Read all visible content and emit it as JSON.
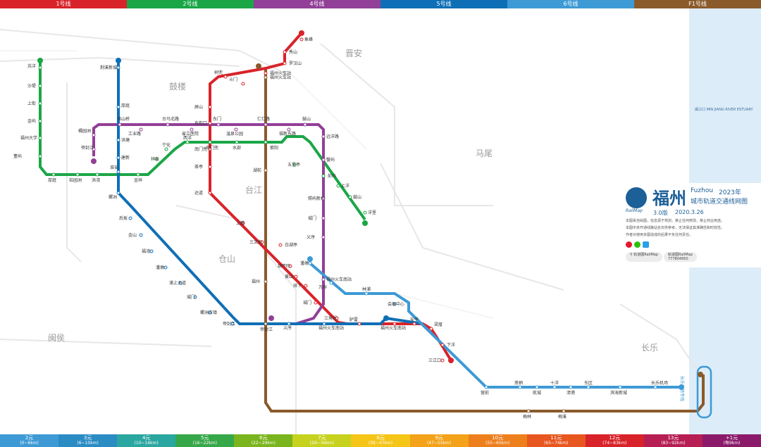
{
  "legend": [
    {
      "label": "1号线",
      "color": "#d9232a"
    },
    {
      "label": "2号线",
      "color": "#1aa646"
    },
    {
      "label": "4号线",
      "color": "#923f97"
    },
    {
      "label": "5号线",
      "color": "#0f6fb6"
    },
    {
      "label": "6号线",
      "color": "#3d9ad5"
    },
    {
      "label": "F1号线",
      "color": "#8a5a2b"
    }
  ],
  "districts": [
    "晋安",
    "鼓楼",
    "马尾",
    "台江",
    "仓山",
    "闽侯",
    "长乐"
  ],
  "info": {
    "city": "福州",
    "en": "Fuzhou",
    "year": "2023年",
    "subtitle": "城市轨道交通线网图",
    "version": "3.0版",
    "date": "2020.3.26",
    "brand": "RailMap",
    "note1": "本图系自绘图，信息源于规划，禁止任何修改，禁止商业用途。",
    "note2": "本图中未开通线路站名仅供参考，无法保证其准确性和时效性。",
    "note3": "作者对使用本图造成的后果不负任何责任。",
    "weibo": "轨道图RailMap",
    "qq_label": "轨道图RailMap",
    "qq": "777804950"
  },
  "estuary": "闽江口 MIN JIANG RIVER ESTUARY",
  "airport_link": "长乐机场专线",
  "fares": [
    {
      "price": "2元",
      "range": "(0~6km)",
      "color": "#3d9ad5"
    },
    {
      "price": "3元",
      "range": "(6~10km)",
      "color": "#2b8cc4"
    },
    {
      "price": "4元",
      "range": "(10~16km)",
      "color": "#2aa7a0"
    },
    {
      "price": "5元",
      "range": "(16~22km)",
      "color": "#37a84a"
    },
    {
      "price": "6元",
      "range": "(22~29km)",
      "color": "#7ab51d"
    },
    {
      "price": "7元",
      "range": "(29~36km)",
      "color": "#c6d21e"
    },
    {
      "price": "8元",
      "range": "(36~47km)",
      "color": "#f5c518"
    },
    {
      "price": "9元",
      "range": "(47~55km)",
      "color": "#f3a21a"
    },
    {
      "price": "10元",
      "range": "(55~65km)",
      "color": "#ee7f1d"
    },
    {
      "price": "11元",
      "range": "(65~74km)",
      "color": "#e8571f"
    },
    {
      "price": "12元",
      "range": "(74~83km)",
      "color": "#d9232a"
    },
    {
      "price": "13元",
      "range": "(83~92km)",
      "color": "#b61e54"
    },
    {
      "price": "+1元",
      "range": "(每9km)",
      "color": "#8b1a6b"
    }
  ],
  "lines": [
    {
      "id": "L1",
      "color": "#d9232a",
      "stations": [
        "象峰",
        "秀山",
        "罗汉山",
        "福州火车站",
        "斗门",
        "树兜",
        "屏山",
        "东街口",
        "南门兜",
        "茶亭",
        "达道",
        "上藤",
        "三叉街",
        "白湖亭",
        "葫芦阵",
        "黄山",
        "排下",
        "城门",
        "三角埕",
        "胪雷",
        "福州火车南站",
        "安平",
        "梁厝",
        "下洋",
        "三江口"
      ]
    },
    {
      "id": "L2",
      "color": "#1aa646",
      "stations": [
        "苏洋",
        "沙堤",
        "上街",
        "金屿",
        "福州大学",
        "董屿",
        "厚庭",
        "桔园洲",
        "洪湾",
        "金祥",
        "祥坂",
        "宁化",
        "西洋",
        "南门兜",
        "水部",
        "紫阳",
        "五里亭",
        "前屿",
        "上洋",
        "鼓山",
        "洋里"
      ]
    },
    {
      "id": "L4",
      "color": "#923f97",
      "stations": [
        "帝封江",
        "橘园洲",
        "洪山桥",
        "工业路",
        "台马北路",
        "省立医院",
        "东门",
        "温泉公园",
        "仁仁路",
        "福新东路",
        "鼓山",
        "远洋路",
        "蟹屿",
        "照屿新村",
        "城门",
        "义序",
        "福州火车南站"
      ]
    },
    {
      "id": "L5",
      "color": "#0f6fb6",
      "stations": [
        "荆溪新城",
        "厚庭",
        "洪塘",
        "建新",
        "淮安",
        "螺洲",
        "后坂",
        "金山",
        "福湾",
        "潘墩",
        "浦上大道",
        "城门",
        "螺洲古镇",
        "帝封江",
        "义序",
        "福州火车南站"
      ]
    },
    {
      "id": "L6",
      "color": "#3d9ad5",
      "stations": [
        "潘墩",
        "万寿",
        "林浦",
        "会展中心",
        "营前",
        "莲柄",
        "航城",
        "十洋",
        "漳港",
        "东区",
        "滨海新城",
        "长乐机场"
      ]
    },
    {
      "id": "F1",
      "color": "#8a5a2b",
      "stations": [
        "福州火车站",
        "湖前",
        "福州",
        "帝封江",
        "梅林",
        "梅溪"
      ]
    }
  ]
}
